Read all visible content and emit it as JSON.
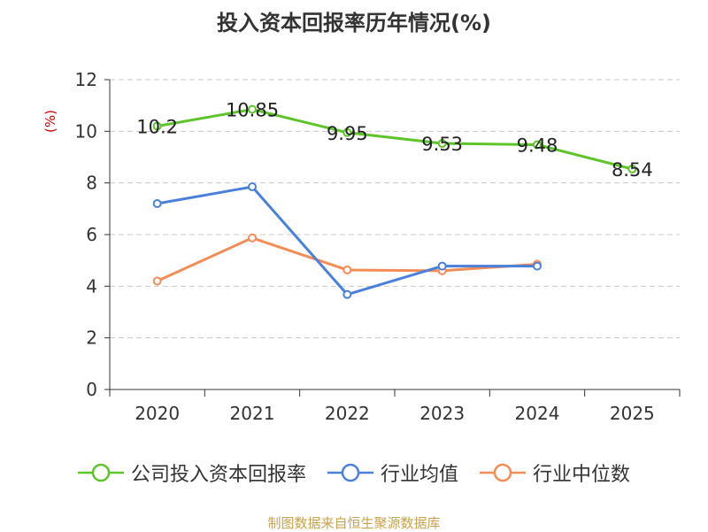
{
  "chart_data": {
    "type": "line",
    "title": "投入资本回报率历年情况(%)",
    "ylabel": "(%)",
    "xlabel": "",
    "categories": [
      "2020",
      "2021",
      "2022",
      "2023",
      "2024",
      "2025"
    ],
    "ylim": [
      0,
      12
    ],
    "yticks": [
      0,
      2,
      4,
      6,
      8,
      10,
      12
    ],
    "grid": true,
    "series": [
      {
        "name": "公司投入资本回报率",
        "color": "#5ec42a",
        "values": [
          10.2,
          10.85,
          9.95,
          9.53,
          9.48,
          8.54
        ],
        "labels": [
          "10.2",
          "10.85",
          "9.95",
          "9.53",
          "9.48",
          "8.54"
        ]
      },
      {
        "name": "行业均值",
        "color": "#4a7fdc",
        "values": [
          7.2,
          7.85,
          3.68,
          4.78,
          4.78,
          null
        ]
      },
      {
        "name": "行业中位数",
        "color": "#f48c56",
        "values": [
          4.2,
          5.87,
          4.63,
          4.6,
          4.85,
          null
        ]
      }
    ],
    "legend_position": "bottom"
  },
  "source": "制图数据来自恒生聚源数据库"
}
